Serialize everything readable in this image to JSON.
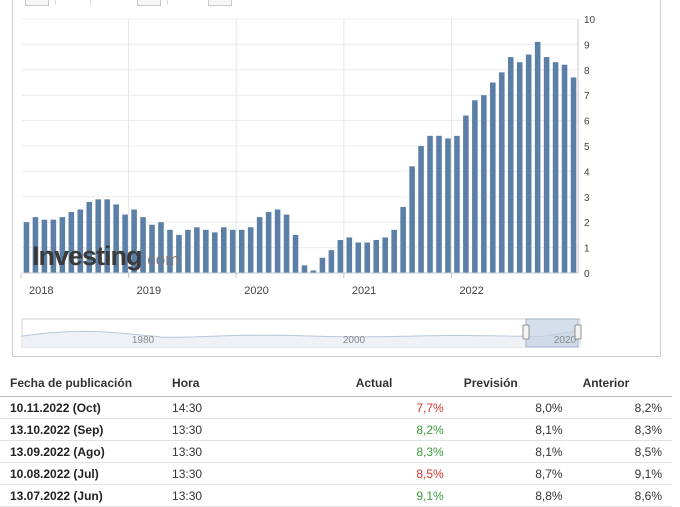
{
  "chart_data": {
    "type": "bar",
    "ylim": [
      0,
      10
    ],
    "yticks": [
      "0",
      "1",
      "2",
      "3",
      "4",
      "5",
      "6",
      "7",
      "8",
      "9",
      "10"
    ],
    "xticks": [
      "2018",
      "2019",
      "2020",
      "2021",
      "2022"
    ],
    "bar_color": "#5b7fa6",
    "values": [
      2.0,
      2.2,
      2.1,
      2.1,
      2.2,
      2.4,
      2.5,
      2.8,
      2.9,
      2.9,
      2.7,
      2.3,
      2.5,
      2.2,
      1.9,
      2.0,
      1.7,
      1.5,
      1.7,
      1.8,
      1.7,
      1.6,
      1.8,
      1.7,
      1.7,
      1.8,
      2.2,
      2.4,
      2.5,
      2.3,
      1.5,
      0.3,
      0.1,
      0.6,
      0.9,
      1.3,
      1.4,
      1.2,
      1.2,
      1.3,
      1.4,
      1.7,
      2.6,
      4.2,
      5.0,
      5.4,
      5.4,
      5.3,
      5.4,
      6.2,
      6.8,
      7.0,
      7.5,
      7.9,
      8.5,
      8.3,
      8.6,
      9.1,
      8.5,
      8.3,
      8.2,
      7.7
    ]
  },
  "navigator": {
    "labels": [
      "1980",
      "2000",
      "2020"
    ]
  },
  "watermark": {
    "brand": "Investing",
    "domain": ".com"
  },
  "table": {
    "headers": {
      "date": "Fecha de publicación",
      "time": "Hora",
      "actual": "Actual",
      "forecast": "Previsión",
      "previous": "Anterior"
    },
    "rows": [
      {
        "date": "10.11.2022 (Oct)",
        "time": "14:30",
        "actual": "7,7%",
        "actual_status": "red",
        "forecast": "8,0%",
        "previous": "8,2%"
      },
      {
        "date": "13.10.2022 (Sep)",
        "time": "13:30",
        "actual": "8,2%",
        "actual_status": "green",
        "forecast": "8,1%",
        "previous": "8,3%"
      },
      {
        "date": "13.09.2022 (Ago)",
        "time": "13:30",
        "actual": "8,3%",
        "actual_status": "green",
        "forecast": "8,1%",
        "previous": "8,5%"
      },
      {
        "date": "10.08.2022 (Jul)",
        "time": "13:30",
        "actual": "8,5%",
        "actual_status": "red",
        "forecast": "8,7%",
        "previous": "9,1%"
      },
      {
        "date": "13.07.2022 (Jun)",
        "time": "13:30",
        "actual": "9,1%",
        "actual_status": "green",
        "forecast": "8,8%",
        "previous": "8,6%"
      }
    ]
  }
}
